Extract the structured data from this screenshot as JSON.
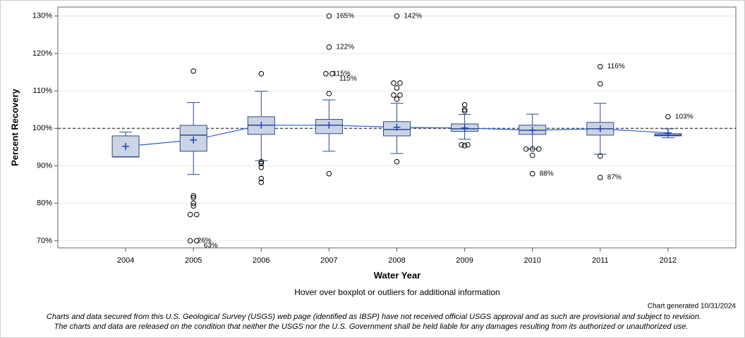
{
  "chart_data": {
    "type": "box",
    "y_title": "Percent Recovery",
    "x_title": "Water Year",
    "hover_note": "Hover over boxplot or outliers for additional information",
    "generated": "Chart generated 10/31/2024",
    "disclaimer": [
      "Charts and data secured from this U.S. Geological Survey (USGS) web page (identified as IBSP) have not received official USGS approval and as such are provisional and subject to revision.",
      "The charts and data are released on the condition that neither the USGS nor the U.S. Government shall be held liable for any damages resulting from its authorized or unauthorized use."
    ],
    "xlim": [
      2003,
      2013
    ],
    "xticks": [
      2004,
      2005,
      2006,
      2007,
      2008,
      2009,
      2010,
      2011,
      2012
    ],
    "ylim": [
      68.1,
      132.4
    ],
    "yticks": [
      {
        "value": 70,
        "label": "70%"
      },
      {
        "value": 80,
        "label": "80%"
      },
      {
        "value": 90,
        "label": "90%"
      },
      {
        "value": 100,
        "label": "100%"
      },
      {
        "value": 110,
        "label": "110%"
      },
      {
        "value": 120,
        "label": "120%"
      },
      {
        "value": 130,
        "label": "130%"
      }
    ],
    "grid": true,
    "ref_line": 100,
    "box_color": "#cbd4e4",
    "edge_color": "#2b4a8c",
    "mean_color": "#1f3fbf",
    "line_color": "#2a5bd7",
    "boxes": [
      {
        "x": 2004,
        "whislo": 92.4,
        "q1": 92.4,
        "median": 92.4,
        "q3": 98.0,
        "whishi": 99.0,
        "mean": 95.2,
        "outliers": []
      },
      {
        "x": 2005,
        "whislo": 87.7,
        "q1": 93.9,
        "median": 98.2,
        "q3": 100.8,
        "whishi": 106.9,
        "mean": 96.9,
        "outliers": [
          {
            "value": 115.3
          },
          {
            "value": 82.0
          },
          {
            "value": 81.5
          },
          {
            "value": 80.0
          },
          {
            "value": 79.3
          },
          {
            "value": 77.0
          },
          {
            "value": 77.0
          },
          {
            "value": 70,
            "note": "26%"
          },
          {
            "value": 70,
            "note": "63%"
          }
        ]
      },
      {
        "x": 2006,
        "whislo": 91.4,
        "q1": 98.4,
        "median": 100.85,
        "q3": 103.1,
        "whishi": 109.9,
        "mean": 100.85,
        "outliers": [
          {
            "value": 114.6
          },
          {
            "value": 91.1
          },
          {
            "value": 90.6
          },
          {
            "value": 89.6
          },
          {
            "value": 86.6
          },
          {
            "value": 85.6
          }
        ]
      },
      {
        "x": 2007,
        "whislo": 93.9,
        "q1": 98.6,
        "median": 100.85,
        "q3": 102.4,
        "whishi": 107.6,
        "mean": 100.85,
        "outliers": [
          {
            "value": 130,
            "note": "165%"
          },
          {
            "value": 121.7,
            "note": "122%"
          },
          {
            "value": 114.6,
            "note": "115%"
          },
          {
            "value": 114.6,
            "note": "115%"
          },
          {
            "value": 109.3
          },
          {
            "value": 87.9
          }
        ]
      },
      {
        "x": 2008,
        "whislo": 93.3,
        "q1": 98.0,
        "median": 99.7,
        "q3": 101.8,
        "whishi": 106.7,
        "mean": 100.3,
        "outliers": [
          {
            "value": 130,
            "note": "142%"
          },
          {
            "value": 112.1
          },
          {
            "value": 112.1
          },
          {
            "value": 110.8
          },
          {
            "value": 108.9
          },
          {
            "value": 108.9
          },
          {
            "value": 107.8
          },
          {
            "value": 91.1
          }
        ]
      },
      {
        "x": 2009,
        "whislo": 97.1,
        "q1": 99.2,
        "median": 99.9,
        "q3": 101.2,
        "whishi": 103.7,
        "mean": 100.1,
        "outliers": [
          {
            "value": 106.3
          },
          {
            "value": 105.0
          },
          {
            "value": 104.6
          },
          {
            "value": 95.6
          },
          {
            "value": 95.6
          },
          {
            "value": 95.4
          }
        ]
      },
      {
        "x": 2010,
        "whislo": 94.5,
        "q1": 98.4,
        "median": 99.5,
        "q3": 100.85,
        "whishi": 103.8,
        "mean": 99.5,
        "outliers": [
          {
            "value": 94.5
          },
          {
            "value": 94.5
          },
          {
            "value": 94.5
          },
          {
            "value": 92.8
          },
          {
            "value": 87.9,
            "note": "88%"
          }
        ]
      },
      {
        "x": 2011,
        "whislo": 93.1,
        "q1": 98.2,
        "median": 99.9,
        "q3": 101.6,
        "whishi": 106.7,
        "mean": 99.9,
        "outliers": [
          {
            "value": 116.5,
            "note": "116%"
          },
          {
            "value": 111.9
          },
          {
            "value": 92.6
          },
          {
            "value": 86.9,
            "note": "87%"
          }
        ]
      },
      {
        "x": 2012,
        "whislo": 97.5,
        "q1": 98.0,
        "median": 98.2,
        "q3": 98.6,
        "whishi": 99.9,
        "mean": 98.8,
        "outliers": [
          {
            "value": 103.1,
            "note": "103%"
          }
        ]
      }
    ]
  }
}
